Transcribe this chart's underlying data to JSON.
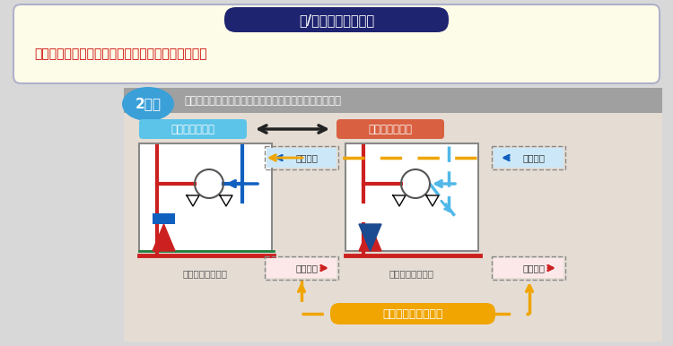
{
  "top_title_text": "冷/暖モード切換時も",
  "top_body_text": "・圧縮機の停止不要　・切換時の冷媒流動音を抑制",
  "section_badge_text": "2管式",
  "section_desc": "圧縮機の運転を停止することなく運転モードの切換実施",
  "cool_mode_label": "冷房主体モード",
  "heat_mode_label": "暖房主体モード",
  "unit_label_left": "〈室外ユニット〉",
  "unit_label_right": "〈室外ユニット〉",
  "low_pressure_gas": "低圧ガス",
  "low_pressure_two": "低圧二相",
  "high_pressure_two": "高圧二相",
  "high_pressure_gas": "高圧ガス",
  "flow_label": "流れ方向が常に一定",
  "bg_color": "#d8d8d8",
  "top_banner_fill": "#fdfce8",
  "top_banner_border": "#b0b0cc",
  "title_pill_fill": "#1e2470",
  "title_pill_text": "#ffffff",
  "body_text_color": "#cc0000",
  "section_bar_fill": "#a0a0a0",
  "badge_fill": "#3ba0d8",
  "badge_text_color": "#ffffff",
  "section_text_color": "#ffffff",
  "main_area_fill": "#e5ddd4",
  "cool_label_fill": "#5bc4e8",
  "heat_label_fill": "#d96040",
  "unit_box_fill": "#ffffff",
  "unit_box_edge": "#888888",
  "orange": "#f0a500",
  "red": "#cc2020",
  "blue": "#1060c0",
  "light_blue": "#50b8e8",
  "green": "#208040",
  "black": "#222222"
}
